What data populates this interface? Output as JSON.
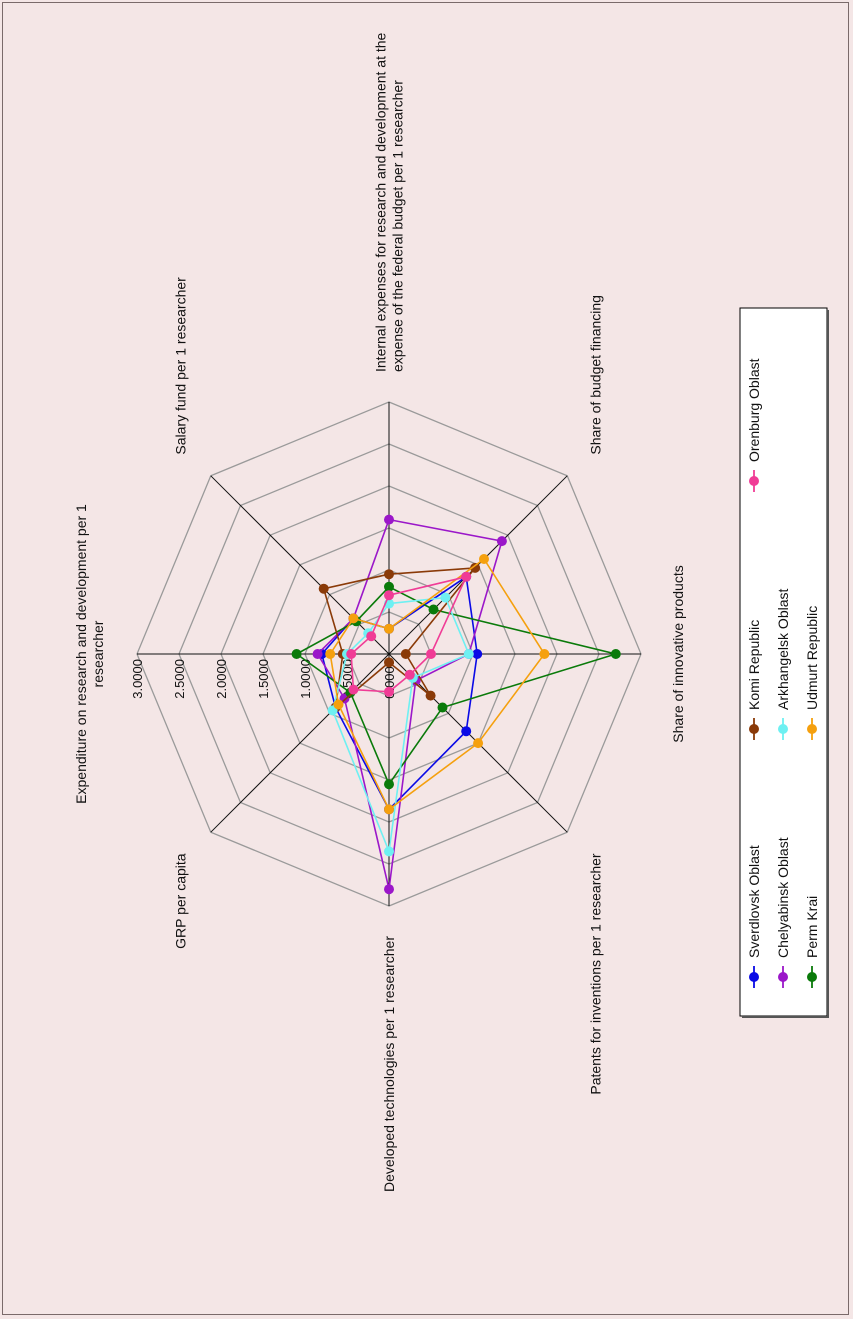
{
  "chart_data": {
    "type": "radar",
    "orientation": "rotated-90-clockwise",
    "axes": [
      [
        "Internal expenses for research and development at the",
        "expense of the federal budget per 1 researcher"
      ],
      [
        "Share of budget financing"
      ],
      [
        "Share of innovative products"
      ],
      [
        "Patents for inventions per 1 researcher"
      ],
      [
        "Developed technologies per 1 researcher"
      ],
      [
        "GRP per capita"
      ],
      [
        "Expenditure on research and development per 1",
        "researcher"
      ],
      [
        "Salary fund per 1 researcher"
      ]
    ],
    "rlim": [
      0,
      3
    ],
    "ticks": [
      0,
      0.5,
      1,
      1.5,
      2,
      2.5,
      3
    ],
    "tick_labels": [
      "0.0000",
      "0.5000",
      "1.0000",
      "1.5000",
      "2.0000",
      "2.5000",
      "3.0000"
    ],
    "series": [
      {
        "name": "Sverdlovsk Oblast",
        "color": "#0a0ae6",
        "values": [
          0.3,
          1.3,
          1.05,
          1.3,
          1.85,
          0.9,
          0.8,
          0.6
        ]
      },
      {
        "name": "Chelyabinsk Oblast",
        "color": "#9b17c9",
        "values": [
          1.6,
          1.9,
          0.95,
          0.45,
          2.8,
          0.75,
          0.85,
          0.6
        ]
      },
      {
        "name": "Perm Krai",
        "color": "#0a7a0a",
        "values": [
          0.8,
          0.75,
          2.7,
          0.9,
          1.55,
          0.65,
          1.1,
          0.55
        ]
      },
      {
        "name": "Komi Republic",
        "color": "#8a3a08",
        "values": [
          0.95,
          1.45,
          0.2,
          0.7,
          0.1,
          0.9,
          0.55,
          1.1
        ]
      },
      {
        "name": "Arkhangelsk Oblast",
        "color": "#6ef0f2",
        "values": [
          0.6,
          0.95,
          0.95,
          0.4,
          2.35,
          0.95,
          0.5,
          0.35
        ]
      },
      {
        "name": "Udmurt Republic",
        "color": "#f5a00e",
        "values": [
          0.3,
          1.6,
          1.85,
          1.5,
          1.85,
          0.85,
          0.7,
          0.6
        ]
      },
      {
        "name": "Orenburg Oblast",
        "color": "#f03c96",
        "values": [
          0.7,
          1.3,
          0.5,
          0.35,
          0.45,
          0.6,
          0.45,
          0.3
        ]
      }
    ],
    "legend": "right"
  }
}
